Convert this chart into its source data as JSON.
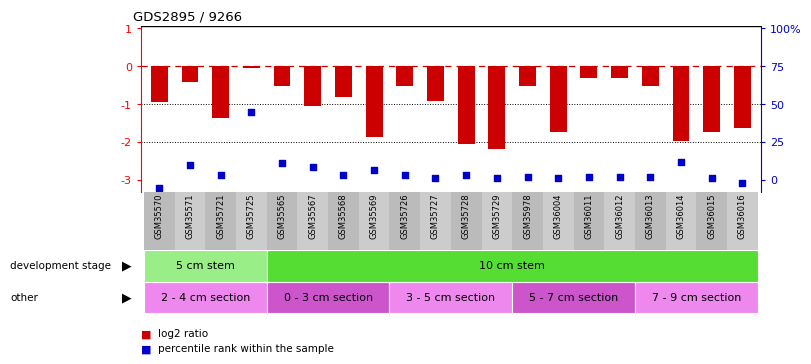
{
  "title": "GDS2895 / 9266",
  "samples": [
    "GSM35570",
    "GSM35571",
    "GSM35721",
    "GSM35725",
    "GSM35565",
    "GSM35567",
    "GSM35568",
    "GSM35569",
    "GSM35726",
    "GSM35727",
    "GSM35728",
    "GSM35729",
    "GSM35978",
    "GSM36004",
    "GSM36011",
    "GSM36012",
    "GSM36013",
    "GSM36014",
    "GSM36015",
    "GSM36016"
  ],
  "log2_ratio": [
    -0.95,
    -0.42,
    -1.35,
    -0.05,
    -0.52,
    -1.05,
    -0.82,
    -1.85,
    -0.52,
    -0.92,
    -2.05,
    -2.18,
    -0.52,
    -1.72,
    -0.32,
    -0.32,
    -0.52,
    -1.98,
    -1.72,
    -1.62
  ],
  "percentile": [
    2,
    16,
    10,
    48,
    17,
    15,
    10,
    13,
    10,
    8,
    10,
    8,
    9,
    8,
    9,
    9,
    9,
    18,
    8,
    5
  ],
  "ylim_left": [
    -3.3,
    1.05
  ],
  "ylim_right": [
    -3.3,
    1.05
  ],
  "yticks_left": [
    -3,
    -2,
    -1,
    0,
    1
  ],
  "yticks_right_vals": [
    0,
    25,
    50,
    75,
    100
  ],
  "yticks_right_pos": [
    -3,
    -2,
    -1,
    0,
    1
  ],
  "bar_color": "#cc0000",
  "dot_color": "#0000cc",
  "dotted_lines": [
    -1,
    -2
  ],
  "dev_stage_groups": [
    {
      "label": "5 cm stem",
      "start": 0,
      "end": 4,
      "color": "#99ee88"
    },
    {
      "label": "10 cm stem",
      "start": 4,
      "end": 20,
      "color": "#55dd33"
    }
  ],
  "other_groups": [
    {
      "label": "2 - 4 cm section",
      "start": 0,
      "end": 4,
      "color": "#ee88ee"
    },
    {
      "label": "0 - 3 cm section",
      "start": 4,
      "end": 8,
      "color": "#cc55cc"
    },
    {
      "label": "3 - 5 cm section",
      "start": 8,
      "end": 12,
      "color": "#ee88ee"
    },
    {
      "label": "5 - 7 cm section",
      "start": 12,
      "end": 16,
      "color": "#cc55cc"
    },
    {
      "label": "7 - 9 cm section",
      "start": 16,
      "end": 20,
      "color": "#ee88ee"
    }
  ],
  "dev_stage_label": "development stage",
  "other_label": "other",
  "legend_red": "log2 ratio",
  "legend_blue": "percentile rank within the sample",
  "right_axis_color": "#0000cc",
  "xtick_bg": "#cccccc",
  "plot_bg": "#ffffff"
}
